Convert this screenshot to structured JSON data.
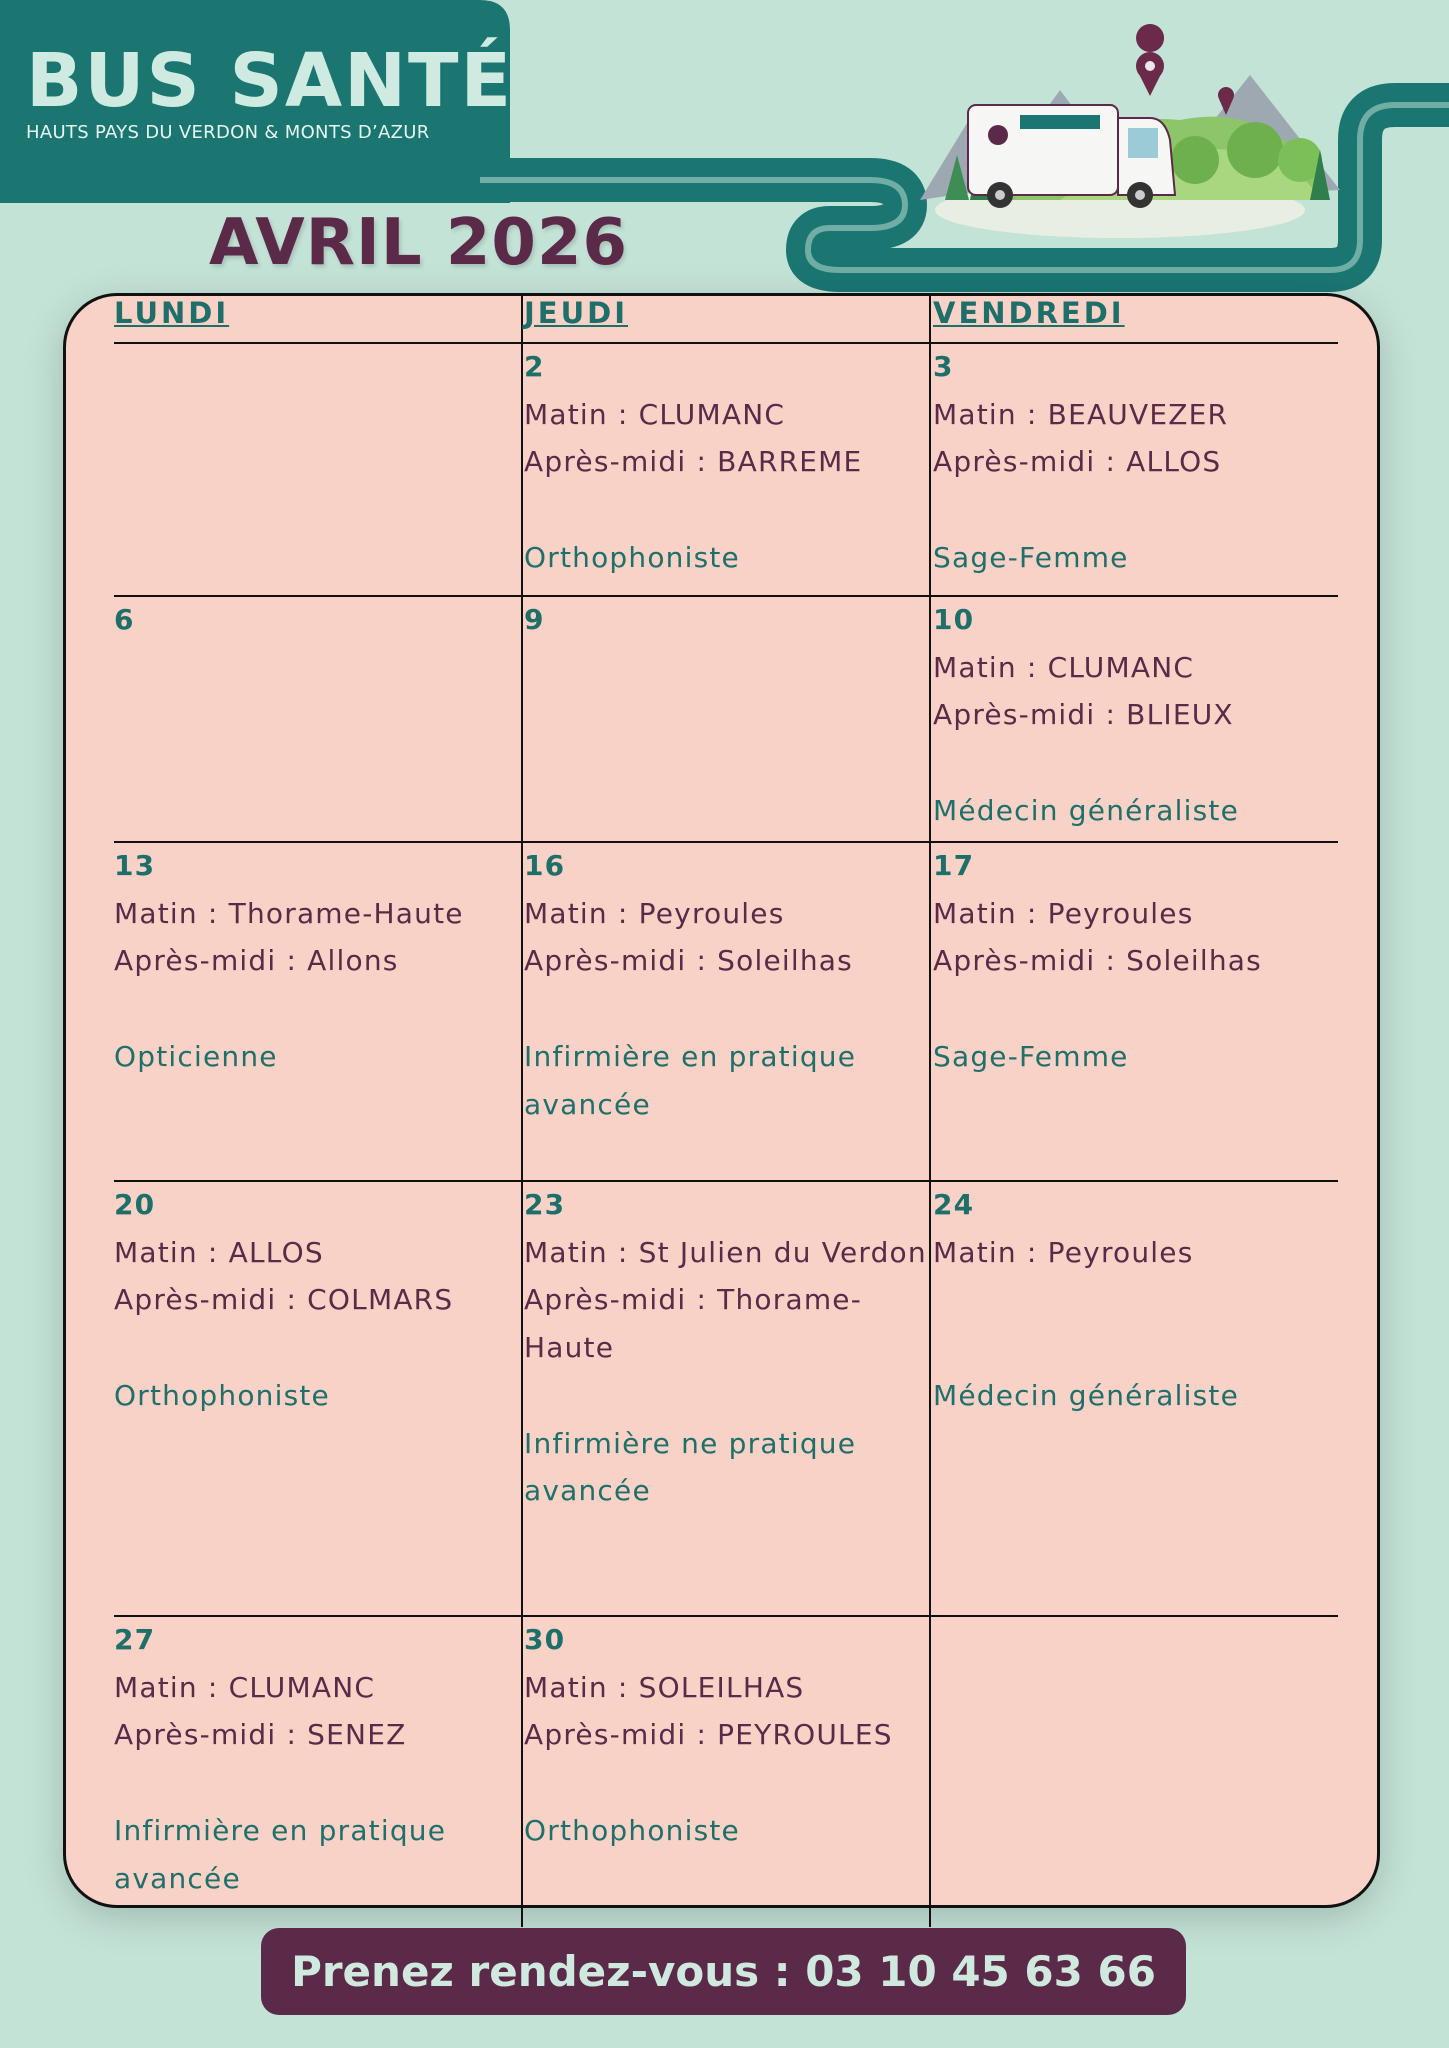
{
  "header": {
    "logo": "BUS SANTÉ",
    "subtitle": "HAUTS PAYS DU VERDON & MONTS D’AZUR"
  },
  "title": "AVRIL 2026",
  "calendar": {
    "headers": [
      "LUNDI",
      "JEUDI",
      "VENDREDI"
    ],
    "rows": [
      [
        null,
        {
          "day": "2",
          "morning": "Matin : CLUMANC",
          "afternoon": "Après-midi : BARREME",
          "specialty": "Orthophoniste"
        },
        {
          "day": "3",
          "morning": "Matin : BEAUVEZER",
          "afternoon": "Après-midi : ALLOS",
          "specialty": "Sage-Femme"
        }
      ],
      [
        {
          "day": "6"
        },
        {
          "day": "9"
        },
        {
          "day": "10",
          "morning": "Matin : CLUMANC",
          "afternoon": "Après-midi : BLIEUX",
          "specialty": "Médecin généraliste"
        }
      ],
      [
        {
          "day": "13",
          "morning": "Matin : Thorame-Haute",
          "afternoon": "Après-midi : Allons",
          "specialty": "Opticienne"
        },
        {
          "day": "16",
          "morning": "Matin : Peyroules",
          "afternoon": "Après-midi : Soleilhas",
          "specialty": "Infirmière en pratique avancée"
        },
        {
          "day": "17",
          "morning": "Matin : Peyroules",
          "afternoon": "Après-midi : Soleilhas",
          "specialty": "Sage-Femme"
        }
      ],
      [
        {
          "day": "20",
          "morning": "Matin : ALLOS",
          "afternoon": "Après-midi : COLMARS",
          "specialty": "Orthophoniste"
        },
        {
          "day": "23",
          "morning": "Matin : St Julien du Verdon",
          "afternoon": "Après-midi : Thorame-Haute",
          "specialty": "Infirmière ne pratique avancée"
        },
        {
          "day": "24",
          "morning": "Matin : Peyroules",
          "specialty": "Médecin généraliste"
        }
      ],
      [
        {
          "day": "27",
          "morning": "Matin : CLUMANC",
          "afternoon": "Après-midi : SENEZ",
          "specialty": "Infirmière en pratique avancée"
        },
        {
          "day": "30",
          "morning": "Matin : SOLEILHAS",
          "afternoon": "Après-midi : PEYROULES",
          "specialty": "Orthophoniste"
        },
        null
      ]
    ]
  },
  "footer": {
    "cta": "Prenez rendez-vous : 03 10 45 63 66"
  }
}
